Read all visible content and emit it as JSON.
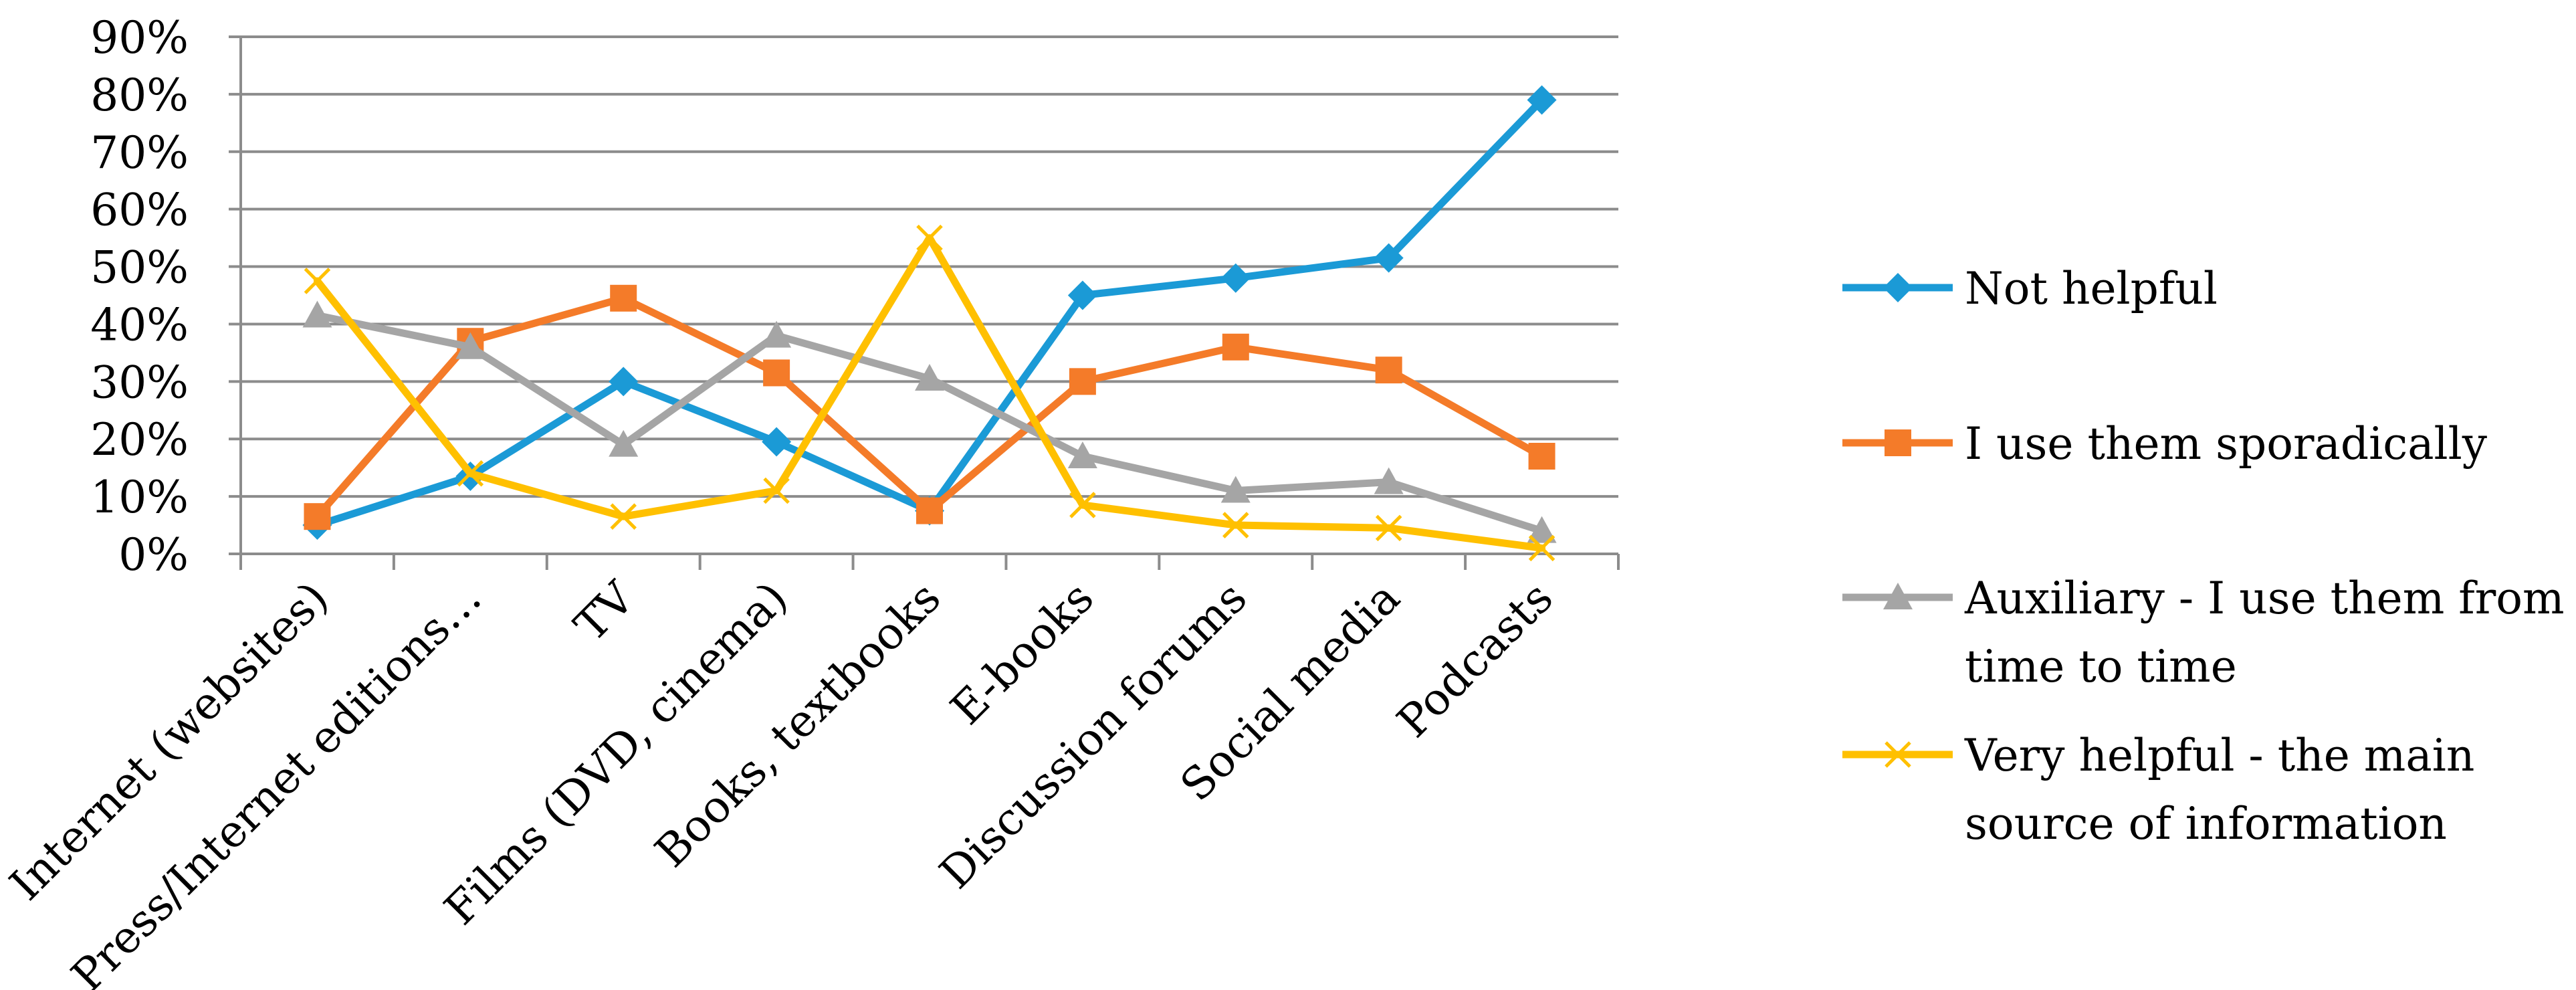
{
  "chart_data": {
    "type": "line",
    "title": "",
    "xlabel": "",
    "ylabel": "",
    "categories": [
      "Internet (websites)",
      "Press/Internet editions…",
      "TV",
      "Films (DVD, cinema)",
      "Books, textbooks",
      "E-books",
      "Discussion forums",
      "Social media",
      "Podcasts"
    ],
    "ylim": [
      0,
      90
    ],
    "y_ticks": [
      0,
      10,
      20,
      30,
      40,
      50,
      60,
      70,
      80,
      90
    ],
    "y_tick_labels": [
      "0%",
      "10%",
      "20%",
      "30%",
      "40%",
      "50%",
      "60%",
      "70%",
      "80%",
      "90%"
    ],
    "y_unit": "percent",
    "grid": "horizontal",
    "legend_position": "right",
    "series": [
      {
        "name": "Not helpful",
        "marker": "diamond",
        "color": "#1B9AD6",
        "values": [
          5,
          13.5,
          30,
          19.5,
          7.5,
          45,
          48,
          51.5,
          79
        ]
      },
      {
        "name": "I use them sporadically",
        "marker": "square",
        "color": "#F47B29",
        "values": [
          6.5,
          37,
          44.5,
          31.5,
          7.5,
          30,
          36,
          32,
          17
        ]
      },
      {
        "name": "Auxiliary - I use them from time to time",
        "marker": "triangle",
        "color": "#A5A5A5",
        "values": [
          41.5,
          36,
          19,
          38,
          30.5,
          17,
          11,
          12.5,
          4
        ]
      },
      {
        "name": "Very helpful - the main source of information",
        "marker": "x",
        "color": "#FFC000",
        "values": [
          47.5,
          14,
          6.5,
          11,
          55,
          8.5,
          5,
          4.5,
          1
        ]
      }
    ],
    "legend_lines": [
      [
        "Not helpful"
      ],
      [
        "I use them sporadically"
      ],
      [
        "Auxiliary - I use them from",
        "time to time"
      ],
      [
        "Very helpful - the main",
        "source of information"
      ]
    ]
  }
}
